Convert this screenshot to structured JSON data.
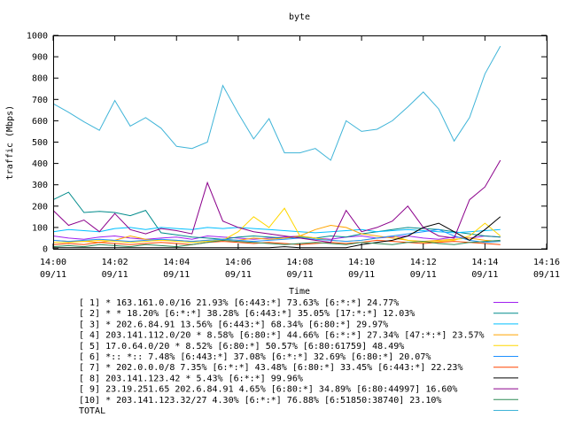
{
  "chart_data": {
    "type": "line",
    "title": "byte",
    "xlabel": "Time",
    "ylabel": "traffic (Mbps)",
    "ylim": [
      0,
      1000
    ],
    "xlim": [
      0,
      16
    ],
    "y_ticks": [
      0,
      100,
      200,
      300,
      400,
      500,
      600,
      700,
      800,
      900,
      1000
    ],
    "x_ticks": [
      {
        "v": 0,
        "time": "14:00",
        "date": "09/11"
      },
      {
        "v": 2,
        "time": "14:02",
        "date": "09/11"
      },
      {
        "v": 4,
        "time": "14:04",
        "date": "09/11"
      },
      {
        "v": 6,
        "time": "14:06",
        "date": "09/11"
      },
      {
        "v": 8,
        "time": "14:08",
        "date": "09/11"
      },
      {
        "v": 10,
        "time": "14:10",
        "date": "09/11"
      },
      {
        "v": 12,
        "time": "14:12",
        "date": "09/11"
      },
      {
        "v": 14,
        "time": "14:14",
        "date": "09/11"
      },
      {
        "v": 16,
        "time": "14:16",
        "date": "09/11"
      }
    ],
    "x": [
      0,
      0.5,
      1,
      1.5,
      2,
      2.5,
      3,
      3.5,
      4,
      4.5,
      5,
      5.5,
      6,
      6.5,
      7,
      7.5,
      8,
      8.5,
      9,
      9.5,
      10,
      10.5,
      11,
      11.5,
      12,
      12.5,
      13,
      13.5,
      14,
      14.5
    ],
    "grid": false,
    "legend_position": "bottom",
    "series": [
      {
        "name": "[ 1] * 163.161.0.0/16 21.93%  [6:443:*] 73.63% [6:*:*] 24.77%",
        "color": "#a020f0",
        "values": [
          60,
          50,
          45,
          55,
          60,
          50,
          45,
          50,
          55,
          45,
          60,
          55,
          50,
          45,
          50,
          55,
          60,
          50,
          45,
          55,
          60,
          50,
          55,
          60,
          50,
          45,
          55,
          50,
          60,
          55
        ]
      },
      {
        "name": "[ 2] * * 18.20%  [6:*:*] 38.28% [6:443:*] 35.05% [17:*:*] 12.03%",
        "color": "#008b8b",
        "values": [
          230,
          265,
          170,
          175,
          170,
          155,
          180,
          75,
          65,
          55,
          50,
          45,
          55,
          60,
          55,
          50,
          55,
          50,
          60,
          55,
          70,
          80,
          90,
          100,
          95,
          90,
          80,
          70,
          60,
          55
        ]
      },
      {
        "name": "[ 3] * 202.6.84.91 13.56%  [6:443:*] 68.34% [6:80:*] 29.97%",
        "color": "#00bfff",
        "values": [
          80,
          90,
          85,
          80,
          95,
          100,
          90,
          100,
          95,
          90,
          100,
          95,
          100,
          95,
          90,
          85,
          80,
          75,
          80,
          85,
          90,
          80,
          85,
          90,
          85,
          80,
          75,
          80,
          85,
          90
        ]
      },
      {
        "name": "[ 4] 203.141.112.0/20 * 8.58%  [6:80:*] 44.66% [6:*:*] 27.34% [47:*:*] 23.57%",
        "color": "#ffa500",
        "values": [
          40,
          35,
          35,
          30,
          40,
          60,
          45,
          40,
          40,
          35,
          40,
          45,
          40,
          50,
          45,
          50,
          60,
          90,
          110,
          100,
          70,
          60,
          50,
          40,
          35,
          40,
          45,
          50,
          40,
          35
        ]
      },
      {
        "name": "[ 5] 17.0.64.0/20 * 8.52%  [6:80:*] 50.57% [6:80:61759] 48.49%",
        "color": "#ffd700",
        "values": [
          30,
          30,
          35,
          40,
          35,
          30,
          35,
          40,
          35,
          30,
          35,
          40,
          80,
          150,
          100,
          190,
          60,
          50,
          40,
          35,
          40,
          50,
          60,
          40,
          30,
          35,
          40,
          60,
          120,
          60
        ]
      },
      {
        "name": "[ 6] *:: *:: 7.48%  [6:443:*] 37.08% [6:*:*] 32.69% [6:80:*] 20.07%",
        "color": "#1e90ff",
        "values": [
          40,
          35,
          40,
          45,
          40,
          35,
          40,
          45,
          40,
          35,
          40,
          45,
          40,
          35,
          40,
          45,
          50,
          45,
          40,
          35,
          40,
          50,
          60,
          70,
          80,
          90,
          60,
          40,
          30,
          35
        ]
      },
      {
        "name": "[ 7] * 202.0.0.0/8 7.35%  [6:*:*] 43.48% [6:80:*] 33.45% [6:443:*] 22.23%",
        "color": "#ff4500",
        "values": [
          20,
          25,
          20,
          30,
          25,
          20,
          25,
          30,
          25,
          20,
          30,
          35,
          30,
          25,
          30,
          25,
          20,
          25,
          30,
          25,
          30,
          40,
          35,
          30,
          25,
          30,
          35,
          30,
          25,
          20
        ]
      },
      {
        "name": "[ 8] 203.141.123.42 * 5.43%  [6:*:*] 99.96%",
        "color": "#000000",
        "values": [
          5,
          5,
          5,
          5,
          5,
          5,
          5,
          5,
          5,
          5,
          5,
          5,
          5,
          5,
          5,
          10,
          5,
          5,
          5,
          5,
          20,
          30,
          40,
          60,
          100,
          120,
          80,
          40,
          90,
          150
        ]
      },
      {
        "name": "[ 9] 23.19.251.65 202.6.84.91 4.65%  [6:80:*] 34.89% [6:80:44997] 16.60%",
        "color": "#8b008b",
        "values": [
          180,
          110,
          135,
          80,
          165,
          90,
          70,
          95,
          85,
          70,
          310,
          130,
          100,
          80,
          70,
          60,
          50,
          40,
          30,
          180,
          80,
          100,
          130,
          200,
          100,
          60,
          50,
          230,
          290,
          415
        ]
      },
      {
        "name": "[10] * 203.141.123.32/27 4.30%  [6:*:*] 76.88% [6:51850:38740] 23.10%",
        "color": "#2e8b57",
        "values": [
          10,
          15,
          10,
          20,
          15,
          10,
          20,
          15,
          10,
          20,
          30,
          40,
          35,
          30,
          25,
          20,
          25,
          30,
          25,
          20,
          30,
          25,
          20,
          30,
          35,
          25,
          20,
          30,
          35,
          40
        ]
      },
      {
        "name": "TOTAL",
        "color": "#3fb4d8",
        "values": [
          680,
          640,
          595,
          555,
          695,
          575,
          615,
          565,
          480,
          470,
          500,
          765,
          635,
          515,
          610,
          450,
          450,
          470,
          415,
          600,
          550,
          560,
          600,
          665,
          735,
          655,
          505,
          615,
          820,
          950
        ]
      }
    ]
  }
}
